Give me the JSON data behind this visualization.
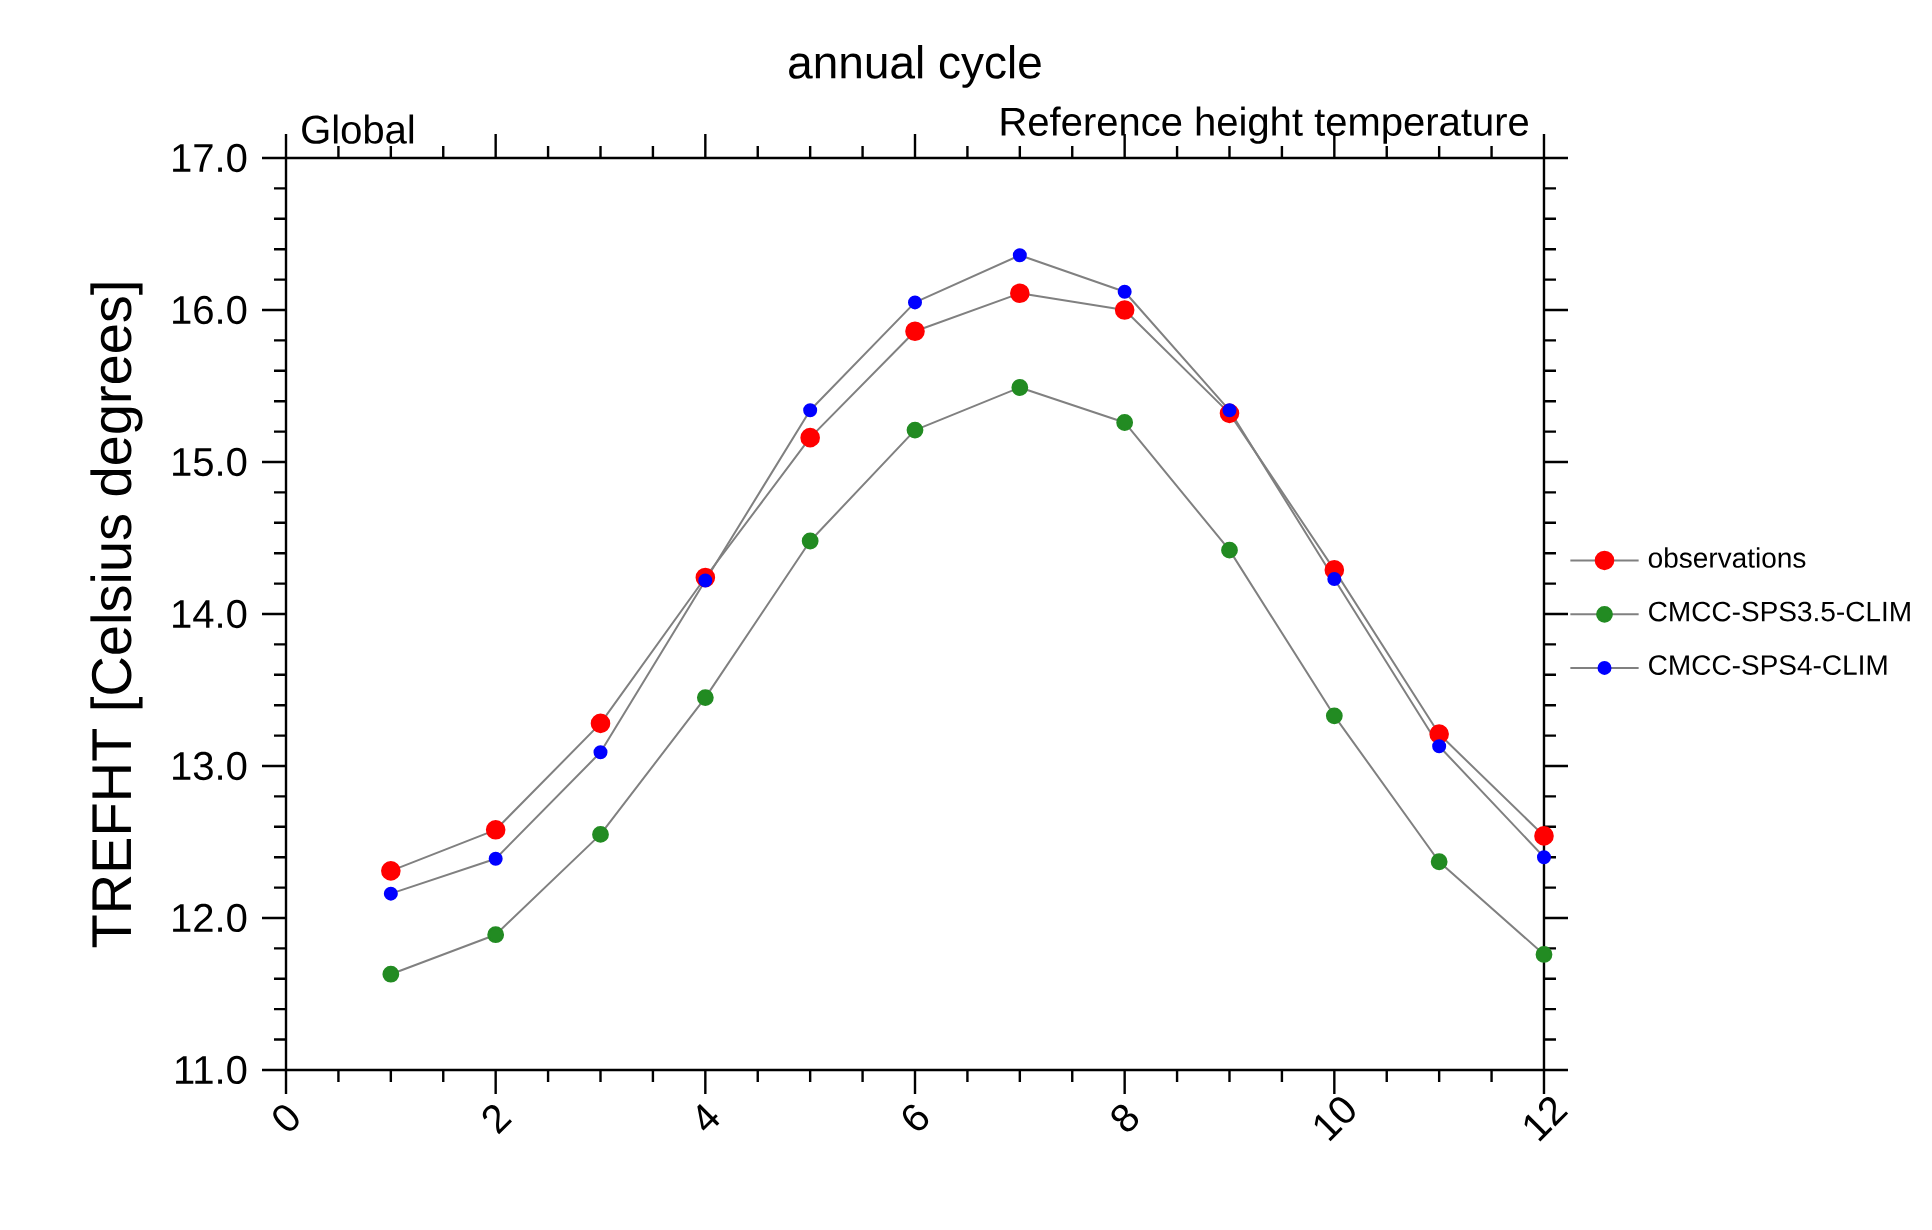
{
  "chart_data": {
    "type": "line",
    "title": "annual cycle",
    "subtitle": "Global",
    "annotations": [
      "Reference height temperature"
    ],
    "ylabel": "TREFHT [Celsius degrees]",
    "x": [
      1,
      2,
      3,
      4,
      5,
      6,
      7,
      8,
      9,
      10,
      11,
      12
    ],
    "series": [
      {
        "name": "observations",
        "color": "#ff0000",
        "values": [
          12.31,
          12.58,
          13.28,
          14.24,
          15.16,
          15.86,
          16.11,
          16.0,
          15.32,
          14.29,
          13.21,
          12.54
        ]
      },
      {
        "name": "CMCC-SPS3.5-CLIM",
        "color": "#228b22",
        "values": [
          11.63,
          11.89,
          12.55,
          13.45,
          14.48,
          15.21,
          15.49,
          15.26,
          14.42,
          13.33,
          12.37,
          11.76
        ]
      },
      {
        "name": "CMCC-SPS4-CLIM",
        "color": "#0000ff",
        "values": [
          12.16,
          12.39,
          13.09,
          14.22,
          15.34,
          16.05,
          16.36,
          16.12,
          15.34,
          14.23,
          13.13,
          12.4
        ]
      }
    ],
    "xlim": [
      0,
      12
    ],
    "xticks": [
      0,
      2,
      4,
      6,
      8,
      10,
      12
    ],
    "ylim": [
      11,
      17
    ],
    "yticks": [
      {
        "value": 11,
        "label": "11.0"
      },
      {
        "value": 12,
        "label": "12.0"
      },
      {
        "value": 13,
        "label": "13.0"
      },
      {
        "value": 14,
        "label": "14.0"
      },
      {
        "value": 15,
        "label": "15.0"
      },
      {
        "value": 16,
        "label": "16.0"
      },
      {
        "value": 17,
        "label": "17.0"
      }
    ],
    "legend": "right",
    "marker": "circle",
    "line_style": "solid"
  }
}
